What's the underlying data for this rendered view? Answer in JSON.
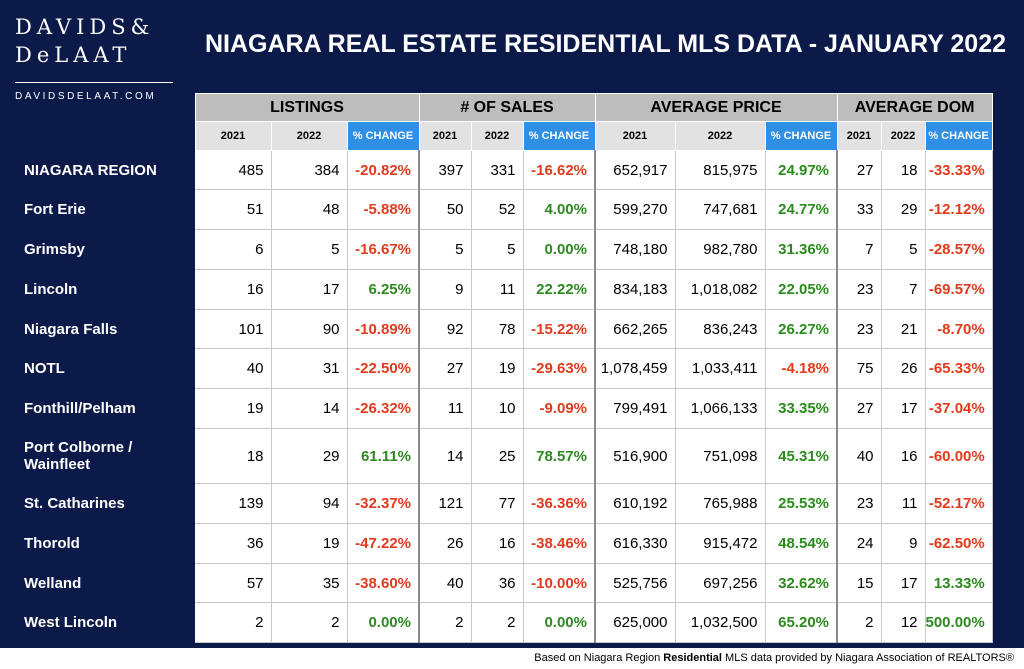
{
  "logo": {
    "line1": "DAVIDS&",
    "line2": "DeLAAT",
    "url": "DAVIDSDELAAT.COM"
  },
  "title": "NIAGARA REAL ESTATE RESIDENTIAL MLS DATA - JANUARY 2022",
  "groups": [
    "LISTINGS",
    "# OF SALES",
    "AVERAGE PRICE",
    "AVERAGE DOM"
  ],
  "subheaders": {
    "y1": "2021",
    "y2": "2022",
    "pct": "% CHANGE"
  },
  "rows": [
    {
      "region": "NIAGARA REGION",
      "values": [
        "485",
        "384",
        "-20.82%",
        "397",
        "331",
        "-16.62%",
        "652,917",
        "815,975",
        "24.97%",
        "27",
        "18",
        "-33.33%"
      ]
    },
    {
      "region": "Fort Erie",
      "values": [
        "51",
        "48",
        "-5.88%",
        "50",
        "52",
        "4.00%",
        "599,270",
        "747,681",
        "24.77%",
        "33",
        "29",
        "-12.12%"
      ]
    },
    {
      "region": "Grimsby",
      "values": [
        "6",
        "5",
        "-16.67%",
        "5",
        "5",
        "0.00%",
        "748,180",
        "982,780",
        "31.36%",
        "7",
        "5",
        "-28.57%"
      ]
    },
    {
      "region": "Lincoln",
      "values": [
        "16",
        "17",
        "6.25%",
        "9",
        "11",
        "22.22%",
        "834,183",
        "1,018,082",
        "22.05%",
        "23",
        "7",
        "-69.57%"
      ]
    },
    {
      "region": "Niagara Falls",
      "values": [
        "101",
        "90",
        "-10.89%",
        "92",
        "78",
        "-15.22%",
        "662,265",
        "836,243",
        "26.27%",
        "23",
        "21",
        "-8.70%"
      ]
    },
    {
      "region": "NOTL",
      "values": [
        "40",
        "31",
        "-22.50%",
        "27",
        "19",
        "-29.63%",
        "1,078,459",
        "1,033,411",
        "-4.18%",
        "75",
        "26",
        "-65.33%"
      ]
    },
    {
      "region": "Fonthill/Pelham",
      "values": [
        "19",
        "14",
        "-26.32%",
        "11",
        "10",
        "-9.09%",
        "799,491",
        "1,066,133",
        "33.35%",
        "27",
        "17",
        "-37.04%"
      ]
    },
    {
      "region": "Port Colborne / Wainfleet",
      "values": [
        "18",
        "29",
        "61.11%",
        "14",
        "25",
        "78.57%",
        "516,900",
        "751,098",
        "45.31%",
        "40",
        "16",
        "-60.00%"
      ]
    },
    {
      "region": "St. Catharines",
      "values": [
        "139",
        "94",
        "-32.37%",
        "121",
        "77",
        "-36.36%",
        "610,192",
        "765,988",
        "25.53%",
        "23",
        "11",
        "-52.17%"
      ]
    },
    {
      "region": "Thorold",
      "values": [
        "36",
        "19",
        "-47.22%",
        "26",
        "16",
        "-38.46%",
        "616,330",
        "915,472",
        "48.54%",
        "24",
        "9",
        "-62.50%"
      ]
    },
    {
      "region": "Welland",
      "values": [
        "57",
        "35",
        "-38.60%",
        "40",
        "36",
        "-10.00%",
        "525,756",
        "697,256",
        "32.62%",
        "15",
        "17",
        "13.33%"
      ]
    },
    {
      "region": "West Lincoln",
      "values": [
        "2",
        "2",
        "0.00%",
        "2",
        "2",
        "0.00%",
        "625,000",
        "1,032,500",
        "65.20%",
        "2",
        "12",
        "500.00%"
      ]
    }
  ],
  "footer": {
    "prefix": "Based on Niagara Region ",
    "bold": "Residential",
    "suffix": " MLS data provided by Niagara Association of REALTORS®"
  },
  "colors": {
    "navy": "#0c1a4a",
    "positive": "#2c8a1f",
    "negative": "#e23a1c",
    "pct_header": "#2f8fe4"
  }
}
